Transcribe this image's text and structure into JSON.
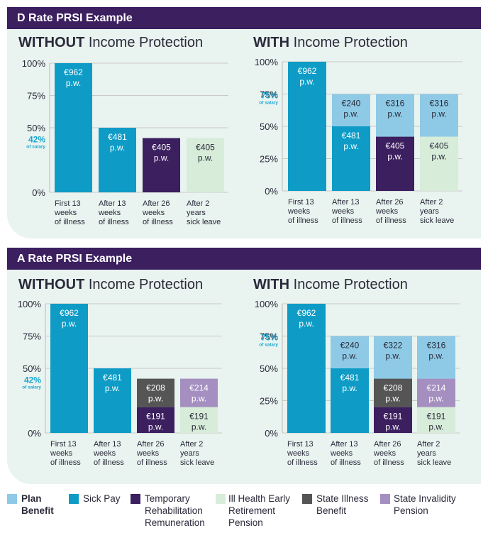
{
  "colors": {
    "plan_benefit": "#8ecae6",
    "sick_pay": "#0e9cc7",
    "temporary_rehabilitation_remuneration": "#3b1f5f",
    "ill_health_early_retirement_pension": "#d7ecd9",
    "state_illness_benefit": "#555555",
    "state_invalidity_pension": "#a58fc0",
    "header_bg": "#3b1f5f",
    "highlight": "#1aa6d0"
  },
  "sections": [
    {
      "title": "D Rate PRSI Example"
    },
    {
      "title": "A Rate PRSI Example"
    }
  ],
  "legend": [
    {
      "key": "plan_benefit",
      "label": "Plan Benefit"
    },
    {
      "key": "sick_pay",
      "label": "Sick Pay"
    },
    {
      "key": "temporary_rehabilitation_remuneration",
      "label": "Temporary Rehabilitation Remuneration"
    },
    {
      "key": "ill_health_early_retirement_pension",
      "label": "Ill Health Early Retirement Pension"
    },
    {
      "key": "state_illness_benefit",
      "label": "State Illness Benefit"
    },
    {
      "key": "state_invalidity_pension",
      "label": "State Invalidity Pension"
    }
  ],
  "chart_data": [
    {
      "type": "bar",
      "title_bold": "WITHOUT",
      "title_rest": " Income Protection",
      "yticks": [
        "0%",
        "50%",
        "75%",
        "100%"
      ],
      "ytick_values": [
        0,
        50,
        75,
        100
      ],
      "ylim": [
        0,
        100
      ],
      "highlight": {
        "pct": "42%",
        "text": "of salary",
        "value": 42
      },
      "categories": [
        [
          "First 13",
          "weeks",
          "of illness"
        ],
        [
          "After 13",
          "weeks",
          "of illness"
        ],
        [
          "After 26",
          "weeks",
          "of illness"
        ],
        [
          "After 2",
          "years",
          "sick leave"
        ]
      ],
      "bars": [
        [
          {
            "key": "sick_pay",
            "value": 100,
            "label": [
              "€962",
              "p.w."
            ]
          }
        ],
        [
          {
            "key": "sick_pay",
            "value": 50,
            "label": [
              "€481",
              "p.w."
            ]
          }
        ],
        [
          {
            "key": "temporary_rehabilitation_remuneration",
            "value": 42,
            "label": [
              "€405",
              "p.w."
            ]
          }
        ],
        [
          {
            "key": "ill_health_early_retirement_pension",
            "value": 42,
            "label": [
              "€405",
              "p.w."
            ]
          }
        ]
      ]
    },
    {
      "type": "bar",
      "title_bold": "WITH",
      "title_rest": " Income Protection",
      "yticks": [
        "0%",
        "25%",
        "50%",
        "75%",
        "100%"
      ],
      "ytick_values": [
        0,
        25,
        50,
        75,
        100
      ],
      "ylim": [
        0,
        100
      ],
      "highlight": {
        "pct": "75%",
        "text": "of salary",
        "value": 75
      },
      "categories": [
        [
          "First 13",
          "weeks",
          "of illness"
        ],
        [
          "After 13",
          "weeks",
          "of illness"
        ],
        [
          "After 26",
          "weeks",
          "of illness"
        ],
        [
          "After 2",
          "years",
          "sick leave"
        ]
      ],
      "bars": [
        [
          {
            "key": "sick_pay",
            "value": 100,
            "label": [
              "€962",
              "p.w."
            ]
          }
        ],
        [
          {
            "key": "sick_pay",
            "value": 50,
            "label": [
              "€481",
              "p.w."
            ]
          },
          {
            "key": "plan_benefit",
            "value": 25,
            "label": [
              "€240",
              "p.w."
            ]
          }
        ],
        [
          {
            "key": "temporary_rehabilitation_remuneration",
            "value": 42,
            "label": [
              "€405",
              "p.w."
            ]
          },
          {
            "key": "plan_benefit",
            "value": 33,
            "label": [
              "€316",
              "p.w."
            ]
          }
        ],
        [
          {
            "key": "ill_health_early_retirement_pension",
            "value": 42,
            "label": [
              "€405",
              "p.w."
            ]
          },
          {
            "key": "plan_benefit",
            "value": 33,
            "label": [
              "€316",
              "p.w."
            ]
          }
        ]
      ]
    },
    {
      "type": "bar",
      "title_bold": "WITHOUT",
      "title_rest": " Income Protection",
      "yticks": [
        "0%",
        "50%",
        "75%",
        "100%"
      ],
      "ytick_values": [
        0,
        50,
        75,
        100
      ],
      "ylim": [
        0,
        100
      ],
      "highlight": {
        "pct": "42%",
        "text": "of salary",
        "value": 42
      },
      "categories": [
        [
          "First 13",
          "weeks",
          "of illness"
        ],
        [
          "After 13",
          "weeks",
          "of illness"
        ],
        [
          "After 26",
          "weeks",
          "of illness"
        ],
        [
          "After 2",
          "years",
          "sick leave"
        ]
      ],
      "bars": [
        [
          {
            "key": "sick_pay",
            "value": 100,
            "label": [
              "€962",
              "p.w."
            ]
          }
        ],
        [
          {
            "key": "sick_pay",
            "value": 50,
            "label": [
              "€481",
              "p.w."
            ]
          }
        ],
        [
          {
            "key": "temporary_rehabilitation_remuneration",
            "value": 20,
            "label": [
              "€191",
              "p.w."
            ]
          },
          {
            "key": "state_illness_benefit",
            "value": 22,
            "label": [
              "€208",
              "p.w."
            ]
          }
        ],
        [
          {
            "key": "ill_health_early_retirement_pension",
            "value": 20,
            "label": [
              "€191",
              "p.w."
            ]
          },
          {
            "key": "state_invalidity_pension",
            "value": 22,
            "label": [
              "€214",
              "p.w."
            ]
          }
        ]
      ]
    },
    {
      "type": "bar",
      "title_bold": "WITH",
      "title_rest": " Income Protection",
      "yticks": [
        "0%",
        "25%",
        "50%",
        "75%",
        "100%"
      ],
      "ytick_values": [
        0,
        25,
        50,
        75,
        100
      ],
      "ylim": [
        0,
        100
      ],
      "highlight": {
        "pct": "75%",
        "text": "of salary",
        "value": 75
      },
      "categories": [
        [
          "First 13",
          "weeks",
          "of illness"
        ],
        [
          "After 13",
          "weeks",
          "of illness"
        ],
        [
          "After 26",
          "weeks",
          "of illness"
        ],
        [
          "After 2",
          "years",
          "sick leave"
        ]
      ],
      "bars": [
        [
          {
            "key": "sick_pay",
            "value": 100,
            "label": [
              "€962",
              "p.w."
            ]
          }
        ],
        [
          {
            "key": "sick_pay",
            "value": 50,
            "label": [
              "€481",
              "p.w."
            ]
          },
          {
            "key": "plan_benefit",
            "value": 25,
            "label": [
              "€240",
              "p.w."
            ]
          }
        ],
        [
          {
            "key": "temporary_rehabilitation_remuneration",
            "value": 20,
            "label": [
              "€191",
              "p.w."
            ]
          },
          {
            "key": "state_illness_benefit",
            "value": 22,
            "label": [
              "€208",
              "p.w."
            ]
          },
          {
            "key": "plan_benefit",
            "value": 33,
            "label": [
              "€322",
              "p.w."
            ]
          }
        ],
        [
          {
            "key": "ill_health_early_retirement_pension",
            "value": 20,
            "label": [
              "€191",
              "p.w."
            ]
          },
          {
            "key": "state_invalidity_pension",
            "value": 22,
            "label": [
              "€214",
              "p.w."
            ]
          },
          {
            "key": "plan_benefit",
            "value": 33,
            "label": [
              "€316",
              "p.w."
            ]
          }
        ]
      ]
    }
  ]
}
